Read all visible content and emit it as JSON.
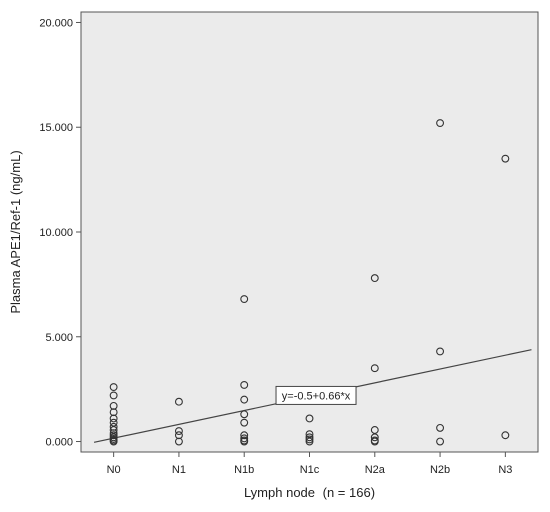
{
  "chart_data": {
    "type": "scatter",
    "xlabel": "Lymph node",
    "xlabel_n": "(n = 166)",
    "ylabel": "Plasma APE1/Ref-1 (ng/mL)",
    "categories": [
      "N0",
      "N1",
      "N1b",
      "N1c",
      "N2a",
      "N2b",
      "N3"
    ],
    "ylim": [
      -0.5,
      20.5
    ],
    "yticks": [
      0,
      5,
      10,
      15,
      20
    ],
    "ytick_labels": [
      "0.000",
      "5.000",
      "10.000",
      "15.000",
      "20.000"
    ],
    "grid": false,
    "background_color": "#ebebeb",
    "marker_color": "#333333",
    "points": [
      {
        "cat": "N0",
        "y": 2.6
      },
      {
        "cat": "N0",
        "y": 2.2
      },
      {
        "cat": "N0",
        "y": 1.7
      },
      {
        "cat": "N0",
        "y": 1.4
      },
      {
        "cat": "N0",
        "y": 1.1
      },
      {
        "cat": "N0",
        "y": 0.9
      },
      {
        "cat": "N0",
        "y": 0.7
      },
      {
        "cat": "N0",
        "y": 0.55
      },
      {
        "cat": "N0",
        "y": 0.4
      },
      {
        "cat": "N0",
        "y": 0.3
      },
      {
        "cat": "N0",
        "y": 0.2
      },
      {
        "cat": "N0",
        "y": 0.12
      },
      {
        "cat": "N0",
        "y": 0.05
      },
      {
        "cat": "N0",
        "y": 0.0
      },
      {
        "cat": "N1",
        "y": 1.9
      },
      {
        "cat": "N1",
        "y": 0.5
      },
      {
        "cat": "N1",
        "y": 0.3
      },
      {
        "cat": "N1",
        "y": 0.0
      },
      {
        "cat": "N1b",
        "y": 6.8
      },
      {
        "cat": "N1b",
        "y": 2.7
      },
      {
        "cat": "N1b",
        "y": 2.0
      },
      {
        "cat": "N1b",
        "y": 1.3
      },
      {
        "cat": "N1b",
        "y": 0.9
      },
      {
        "cat": "N1b",
        "y": 0.3
      },
      {
        "cat": "N1b",
        "y": 0.15
      },
      {
        "cat": "N1b",
        "y": 0.05
      },
      {
        "cat": "N1b",
        "y": 0.0
      },
      {
        "cat": "N1c",
        "y": 1.1
      },
      {
        "cat": "N1c",
        "y": 0.35
      },
      {
        "cat": "N1c",
        "y": 0.2
      },
      {
        "cat": "N1c",
        "y": 0.1
      },
      {
        "cat": "N1c",
        "y": 0.0
      },
      {
        "cat": "N2a",
        "y": 7.8
      },
      {
        "cat": "N2a",
        "y": 3.5
      },
      {
        "cat": "N2a",
        "y": 0.55
      },
      {
        "cat": "N2a",
        "y": 0.2
      },
      {
        "cat": "N2a",
        "y": 0.05
      },
      {
        "cat": "N2a",
        "y": 0.0
      },
      {
        "cat": "N2b",
        "y": 15.2
      },
      {
        "cat": "N2b",
        "y": 4.3
      },
      {
        "cat": "N2b",
        "y": 0.65
      },
      {
        "cat": "N2b",
        "y": 0.0
      },
      {
        "cat": "N3",
        "y": 13.5
      },
      {
        "cat": "N3",
        "y": 0.3
      }
    ],
    "fit_line": {
      "equation": "y=-0.5+0.66*x",
      "intercept": -0.5,
      "slope": 0.66,
      "x_from": 0.7,
      "x_to": 7.4,
      "label_at_x": 4.1,
      "label_at_y": 2.2
    }
  }
}
